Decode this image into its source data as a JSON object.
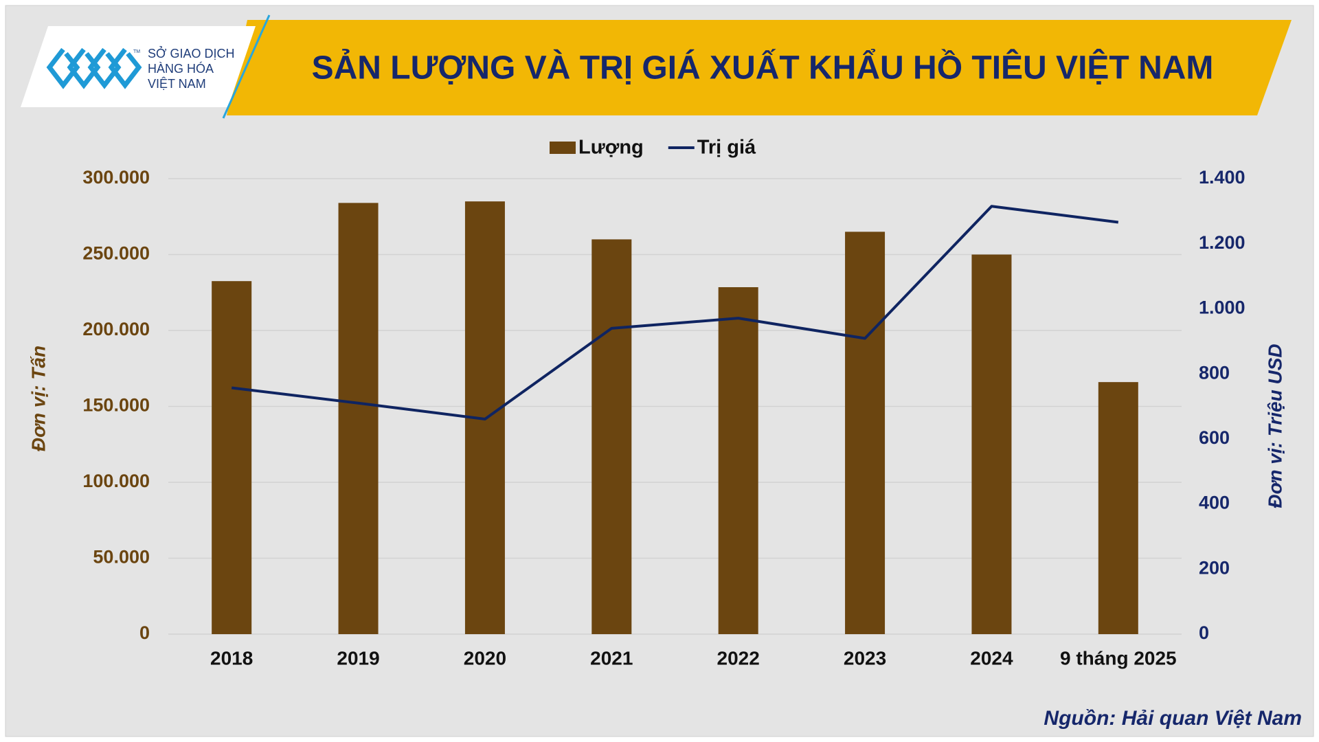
{
  "logo": {
    "lines": [
      "SỞ GIAO DỊCH",
      "HÀNG HÓA",
      "VIỆT NAM"
    ],
    "mark": "TM"
  },
  "chart_data": {
    "type": "bar",
    "title": "SẢN LƯỢNG VÀ TRỊ GIÁ XUẤT KHẨU HỒ TIÊU VIỆT NAM",
    "categories": [
      "2018",
      "2019",
      "2020",
      "2021",
      "2022",
      "2023",
      "2024",
      "9 tháng 2025"
    ],
    "series": [
      {
        "name": "Lượng",
        "type": "bar",
        "color": "#6b4510",
        "values": [
          232500,
          284000,
          285000,
          260000,
          228500,
          265000,
          250000,
          166000
        ]
      },
      {
        "name": "Trị giá",
        "type": "line",
        "axis": "y2",
        "color": "#0f2461",
        "values": [
          757,
          710,
          661,
          940,
          971,
          909,
          1315,
          1266
        ]
      }
    ],
    "ylabel": "Đơn vị: Tấn",
    "y2label": "Đơn vị: Triệu USD",
    "ylim": [
      0,
      300000
    ],
    "yticks": [
      0,
      {
        "value": 50000,
        "label": "50.000"
      },
      {
        "value": 100000,
        "label": "100.000"
      },
      {
        "value": 150000,
        "label": "150.000"
      },
      {
        "value": 200000,
        "label": "200.000"
      },
      {
        "value": 250000,
        "label": "250.000"
      },
      {
        "value": 300000,
        "label": "300.000"
      }
    ],
    "y2lim": [
      0,
      1400
    ],
    "y2ticks": [
      0,
      200,
      400,
      600,
      800,
      {
        "value": 1000,
        "label": "1.000"
      },
      {
        "value": 1200,
        "label": "1.200"
      },
      {
        "value": 1400,
        "label": "1.400"
      }
    ],
    "grid": true,
    "legend": "top",
    "source": "Nguồn: Hải quan Việt Nam"
  }
}
